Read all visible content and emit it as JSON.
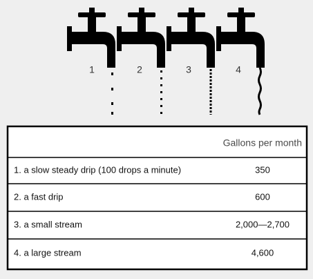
{
  "faucets": [
    {
      "label": "1"
    },
    {
      "label": "2"
    },
    {
      "label": "3"
    },
    {
      "label": "4"
    }
  ],
  "table": {
    "header": "Gallons per month",
    "rows": [
      [
        "1. a slow steady drip (100 drops a minute)",
        "350"
      ],
      [
        "2. a fast drip",
        "600"
      ],
      [
        "3. a small stream",
        "2,000—2,700"
      ],
      [
        "4. a large stream",
        "4,600"
      ]
    ]
  }
}
